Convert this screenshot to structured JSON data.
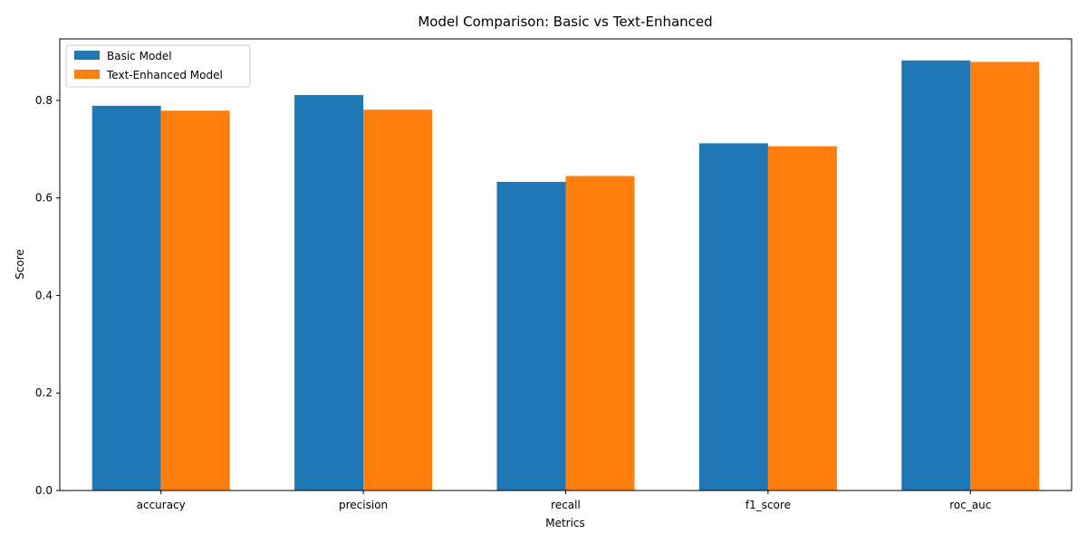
{
  "chart_data": {
    "type": "bar",
    "title": "Model Comparison: Basic vs Text-Enhanced",
    "xlabel": "Metrics",
    "ylabel": "Score",
    "categories": [
      "accuracy",
      "precision",
      "recall",
      "f1_score",
      "roc_auc"
    ],
    "series": [
      {
        "name": "Basic Model",
        "color": "#1f77b4",
        "values": [
          0.789,
          0.811,
          0.633,
          0.712,
          0.882
        ]
      },
      {
        "name": "Text-Enhanced Model",
        "color": "#ff7f0e",
        "values": [
          0.779,
          0.781,
          0.645,
          0.706,
          0.879
        ]
      }
    ],
    "ylim": [
      0,
      0.9261
    ],
    "yticks": [
      0.0,
      0.2,
      0.4,
      0.6,
      0.8
    ],
    "ytick_labels": [
      "0.0",
      "0.2",
      "0.4",
      "0.6",
      "0.8"
    ],
    "legend": "upper left",
    "grid": false
  }
}
